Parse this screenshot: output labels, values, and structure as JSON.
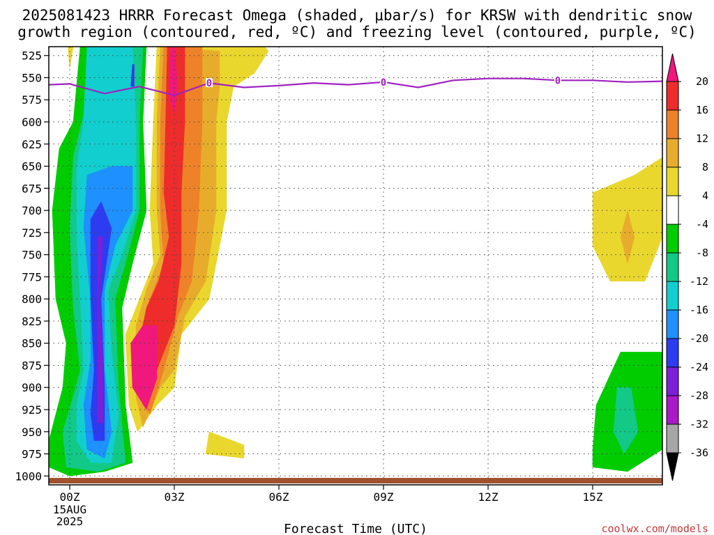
{
  "title_line1": "2025081423 HRRR Forecast Omega (shaded, μbar/s) for KRSW with dendritic snow",
  "title_line2": "growth region (contoured, red, ºC) and freezing level (contoured, purple, ºC)",
  "xlabel": "Forecast Time (UTC)",
  "credit": "coolwx.com/models",
  "chart_data": {
    "type": "heatmap",
    "title": "2025081423 HRRR Forecast Omega (shaded, μbar/s) for KRSW with dendritic snow growth region (contoured, red, ºC) and freezing level (contoured, purple, ºC)",
    "xlabel": "Forecast Time (UTC)",
    "ylabel": "",
    "x_ticks": [
      {
        "hour": 0,
        "label": "00Z",
        "sub": [
          "15AUG",
          "2025"
        ]
      },
      {
        "hour": 3,
        "label": "03Z"
      },
      {
        "hour": 6,
        "label": "06Z"
      },
      {
        "hour": 9,
        "label": "09Z"
      },
      {
        "hour": 12,
        "label": "12Z"
      },
      {
        "hour": 15,
        "label": "15Z"
      }
    ],
    "xlim": [
      -0.6,
      17
    ],
    "ylim": [
      1010,
      515
    ],
    "y_ticks": [
      525,
      550,
      575,
      600,
      625,
      650,
      675,
      700,
      725,
      750,
      775,
      800,
      825,
      850,
      875,
      900,
      925,
      950,
      975,
      1000
    ],
    "colorbar": {
      "units": "μbar/s",
      "labels": [
        20,
        16,
        12,
        8,
        4,
        -4,
        -8,
        -12,
        -16,
        -20,
        -24,
        -28,
        -32,
        -36
      ],
      "bins": [
        {
          "from": 16,
          "to": 20,
          "color": "#ee2c2c"
        },
        {
          "from": 12,
          "to": 16,
          "color": "#ee8228"
        },
        {
          "from": 8,
          "to": 12,
          "color": "#e8ac2c"
        },
        {
          "from": 4,
          "to": 8,
          "color": "#e9d72e"
        },
        {
          "from": -4,
          "to": 4,
          "color": "#ffffff"
        },
        {
          "from": -8,
          "to": -4,
          "color": "#00cc00"
        },
        {
          "from": -12,
          "to": -8,
          "color": "#12c987"
        },
        {
          "from": -16,
          "to": -12,
          "color": "#12cece"
        },
        {
          "from": -20,
          "to": -16,
          "color": "#1e90ff"
        },
        {
          "from": -24,
          "to": -20,
          "color": "#2d3cf0"
        },
        {
          "from": -28,
          "to": -24,
          "color": "#7c1fd8"
        },
        {
          "from": -32,
          "to": -28,
          "color": "#aa18c8"
        },
        {
          "from": -36,
          "to": -32,
          "color": "#a6a6a6"
        }
      ],
      "over_color": "#f0187c",
      "under_color": "#000000"
    },
    "freezing_level": {
      "color": "#a020c0",
      "label": "0",
      "label_hours": [
        4,
        9,
        14
      ],
      "points": [
        [
          -0.6,
          558
        ],
        [
          0,
          557
        ],
        [
          1,
          568
        ],
        [
          2,
          560
        ],
        [
          3,
          570
        ],
        [
          4,
          556
        ],
        [
          5,
          561
        ],
        [
          6,
          559
        ],
        [
          7,
          556
        ],
        [
          8,
          558
        ],
        [
          9,
          555
        ],
        [
          10,
          561
        ],
        [
          11,
          553
        ],
        [
          12,
          551
        ],
        [
          13,
          551
        ],
        [
          14,
          553
        ],
        [
          15,
          553
        ],
        [
          16,
          555
        ],
        [
          17,
          554
        ]
      ]
    },
    "ground_color": "#a0522d",
    "grid": true,
    "shaded_features": [
      {
        "range": [
          -8,
          -4
        ],
        "color": "#00cc00",
        "polygon": [
          [
            0.3,
            515
          ],
          [
            0.1,
            600
          ],
          [
            -0.3,
            630
          ],
          [
            -0.5,
            700
          ],
          [
            -0.4,
            800
          ],
          [
            -0.1,
            850
          ],
          [
            -0.2,
            900
          ],
          [
            -0.6,
            960
          ],
          [
            -0.6,
            990
          ],
          [
            0,
            1000
          ],
          [
            1,
            995
          ],
          [
            1.8,
            985
          ],
          [
            1.6,
            920
          ],
          [
            1.5,
            810
          ],
          [
            1.8,
            760
          ],
          [
            2.2,
            700
          ],
          [
            2.1,
            600
          ],
          [
            2.2,
            515
          ]
        ]
      },
      {
        "range": [
          -12,
          -8
        ],
        "color": "#12c987",
        "polygon": [
          [
            0.5,
            515
          ],
          [
            0.4,
            590
          ],
          [
            0.1,
            640
          ],
          [
            0,
            720
          ],
          [
            0.1,
            810
          ],
          [
            0.3,
            880
          ],
          [
            0.1,
            910
          ],
          [
            -0.2,
            950
          ],
          [
            -0.1,
            990
          ],
          [
            0.8,
            995
          ],
          [
            1.6,
            985
          ],
          [
            1.4,
            900
          ],
          [
            1.3,
            800
          ],
          [
            1.6,
            760
          ],
          [
            2,
            700
          ],
          [
            2,
            600
          ],
          [
            2.1,
            515
          ]
        ]
      },
      {
        "range": [
          -16,
          -12
        ],
        "color": "#12cece",
        "polygon": [
          [
            0.5,
            515
          ],
          [
            0.4,
            600
          ],
          [
            0.2,
            650
          ],
          [
            0.2,
            730
          ],
          [
            0.3,
            800
          ],
          [
            0.4,
            880
          ],
          [
            0.2,
            920
          ],
          [
            0.2,
            960
          ],
          [
            0.6,
            985
          ],
          [
            1.2,
            985
          ],
          [
            1.4,
            930
          ],
          [
            1.2,
            860
          ],
          [
            1.1,
            790
          ],
          [
            1.5,
            750
          ],
          [
            1.9,
            700
          ],
          [
            1.9,
            600
          ],
          [
            1.8,
            515
          ]
        ]
      },
      {
        "range": [
          -20,
          -16
        ],
        "color": "#1e90ff",
        "polygon": [
          [
            0.5,
            660
          ],
          [
            0.4,
            720
          ],
          [
            0.6,
            800
          ],
          [
            0.6,
            870
          ],
          [
            0.4,
            920
          ],
          [
            0.5,
            970
          ],
          [
            1,
            980
          ],
          [
            1.2,
            950
          ],
          [
            1,
            880
          ],
          [
            1,
            790
          ],
          [
            1.3,
            740
          ],
          [
            1.8,
            700
          ],
          [
            1.8,
            650
          ],
          [
            1.2,
            650
          ]
        ]
      },
      {
        "range": [
          -24,
          -20
        ],
        "color": "#2d3cf0",
        "polygon": [
          [
            0.6,
            710
          ],
          [
            0.6,
            800
          ],
          [
            0.7,
            880
          ],
          [
            0.6,
            930
          ],
          [
            0.7,
            960
          ],
          [
            1,
            960
          ],
          [
            1,
            900
          ],
          [
            0.9,
            800
          ],
          [
            1.2,
            720
          ],
          [
            0.9,
            690
          ]
        ]
      },
      {
        "range": [
          -28,
          -24
        ],
        "color": "#7c1fd8",
        "polygon": [
          [
            0.8,
            730
          ],
          [
            0.8,
            800
          ],
          [
            0.8,
            880
          ],
          [
            0.8,
            940
          ],
          [
            0.95,
            940
          ],
          [
            0.95,
            870
          ],
          [
            0.85,
            800
          ],
          [
            0.95,
            730
          ]
        ]
      },
      {
        "range": [
          -24,
          -20
        ],
        "color": "#2d3cf0",
        "polygon": [
          [
            1.8,
            535
          ],
          [
            1.75,
            560
          ],
          [
            1.85,
            560
          ],
          [
            1.85,
            535
          ]
        ]
      },
      {
        "range": [
          4,
          8
        ],
        "color": "#e9d72e",
        "polygon": [
          [
            2.5,
            515
          ],
          [
            2.4,
            600
          ],
          [
            2.3,
            700
          ],
          [
            2.4,
            760
          ],
          [
            2,
            800
          ],
          [
            1.6,
            840
          ],
          [
            1.7,
            920
          ],
          [
            1.95,
            950
          ],
          [
            2.5,
            920
          ],
          [
            3,
            900
          ],
          [
            3.2,
            840
          ],
          [
            4,
            800
          ],
          [
            4.5,
            700
          ],
          [
            4.5,
            600
          ],
          [
            4.7,
            560
          ],
          [
            5.3,
            545
          ],
          [
            5.7,
            520
          ],
          [
            5.6,
            515
          ]
        ]
      },
      {
        "range": [
          8,
          12
        ],
        "color": "#e8ac2c",
        "polygon": [
          [
            2.6,
            515
          ],
          [
            2.5,
            600
          ],
          [
            2.5,
            700
          ],
          [
            2.6,
            750
          ],
          [
            2.2,
            790
          ],
          [
            1.9,
            830
          ],
          [
            1.9,
            910
          ],
          [
            2.1,
            945
          ],
          [
            2.6,
            900
          ],
          [
            3,
            880
          ],
          [
            3.3,
            820
          ],
          [
            3.9,
            780
          ],
          [
            4.2,
            700
          ],
          [
            4.2,
            600
          ],
          [
            4.3,
            560
          ],
          [
            4.3,
            520
          ]
        ]
      },
      {
        "range": [
          12,
          16
        ],
        "color": "#ee8228",
        "polygon": [
          [
            2.7,
            515
          ],
          [
            2.6,
            600
          ],
          [
            2.6,
            700
          ],
          [
            2.7,
            760
          ],
          [
            2.3,
            800
          ],
          [
            2,
            840
          ],
          [
            2.1,
            920
          ],
          [
            2.3,
            930
          ],
          [
            2.7,
            880
          ],
          [
            3.1,
            820
          ],
          [
            3.5,
            780
          ],
          [
            3.7,
            700
          ],
          [
            3.8,
            600
          ],
          [
            3.8,
            515
          ]
        ]
      },
      {
        "range": [
          16,
          20
        ],
        "color": "#ee2c2c",
        "polygon": [
          [
            2.8,
            515
          ],
          [
            2.75,
            600
          ],
          [
            2.7,
            680
          ],
          [
            2.85,
            730
          ],
          [
            2.55,
            780
          ],
          [
            2.2,
            810
          ],
          [
            2.0,
            850
          ],
          [
            2.15,
            910
          ],
          [
            2.5,
            880
          ],
          [
            3,
            830
          ],
          [
            3.2,
            760
          ],
          [
            3.2,
            680
          ],
          [
            3.3,
            600
          ],
          [
            3.3,
            515
          ]
        ]
      },
      {
        "range": [
          20,
          24
        ],
        "color": "#f0187c",
        "polygon": [
          [
            2.9,
            515
          ],
          [
            2.85,
            570
          ],
          [
            3,
            590
          ],
          [
            3.1,
            560
          ],
          [
            3,
            515
          ]
        ]
      },
      {
        "range": [
          20,
          24
        ],
        "color": "#f0187c",
        "polygon": [
          [
            2.1,
            830
          ],
          [
            1.75,
            850
          ],
          [
            1.8,
            900
          ],
          [
            2.2,
            925
          ],
          [
            2.5,
            890
          ],
          [
            2.5,
            830
          ]
        ]
      },
      {
        "range": [
          4,
          8
        ],
        "color": "#e9d72e",
        "polygon": [
          [
            4,
            950
          ],
          [
            3.9,
            975
          ],
          [
            5,
            980
          ],
          [
            5,
            965
          ]
        ]
      },
      {
        "range": [
          4,
          8
        ],
        "color": "#e9d72e",
        "polygon": [
          [
            -0.05,
            515
          ],
          [
            0,
            540
          ],
          [
            0.1,
            515
          ]
        ]
      },
      {
        "range": [
          4,
          8
        ],
        "color": "#e9d72e",
        "polygon": [
          [
            15,
            680
          ],
          [
            15,
            740
          ],
          [
            15.5,
            780
          ],
          [
            16.5,
            780
          ],
          [
            17,
            730
          ],
          [
            17,
            640
          ],
          [
            16.2,
            660
          ]
        ]
      },
      {
        "range": [
          8,
          12
        ],
        "color": "#e8ac2c",
        "polygon": [
          [
            16,
            700
          ],
          [
            15.8,
            730
          ],
          [
            16,
            760
          ],
          [
            16.2,
            730
          ]
        ]
      },
      {
        "range": [
          -8,
          -4
        ],
        "color": "#00cc00",
        "polygon": [
          [
            15,
            970
          ],
          [
            15,
            990
          ],
          [
            16,
            995
          ],
          [
            17,
            970
          ],
          [
            17,
            860
          ],
          [
            15.8,
            860
          ],
          [
            15.1,
            920
          ]
        ]
      },
      {
        "range": [
          -12,
          -8
        ],
        "color": "#12c987",
        "polygon": [
          [
            15.7,
            900
          ],
          [
            15.6,
            950
          ],
          [
            15.9,
            975
          ],
          [
            16.3,
            950
          ],
          [
            16.1,
            900
          ]
        ]
      }
    ]
  }
}
